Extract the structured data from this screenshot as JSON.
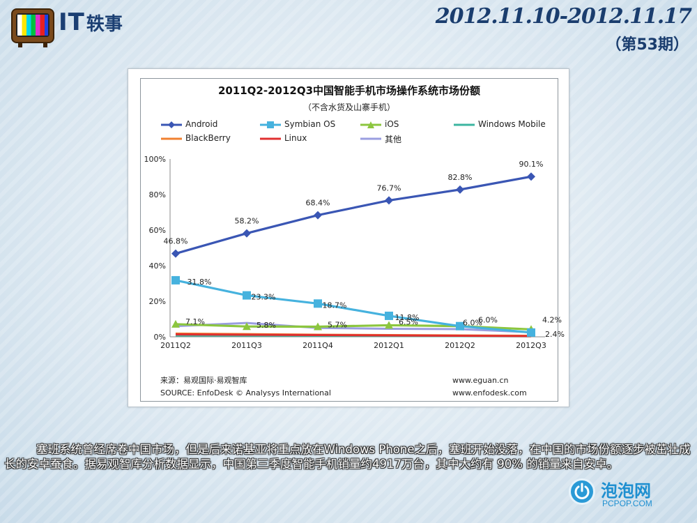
{
  "header": {
    "brand_it": "IT",
    "brand_cn": "轶事",
    "date_range": "2012.11.10-2012.11.17",
    "issue": "（第53期）"
  },
  "chart_data": {
    "type": "line",
    "title": "2011Q2-2012Q3中国智能手机市场操作系统市场份额",
    "subtitle": "（不含水货及山寨手机）",
    "categories": [
      "2011Q2",
      "2011Q3",
      "2011Q4",
      "2012Q1",
      "2012Q2",
      "2012Q3"
    ],
    "ylim": [
      0,
      100
    ],
    "yticks": [
      "0%",
      "20%",
      "40%",
      "60%",
      "80%",
      "100%"
    ],
    "legend_position": "top",
    "series": [
      {
        "name": "Android",
        "color": "#3a56b4",
        "marker": "diamond",
        "values": [
          46.8,
          58.2,
          68.4,
          76.7,
          82.8,
          90.1
        ],
        "labels": [
          "46.8%",
          "58.2%",
          "68.4%",
          "76.7%",
          "82.8%",
          "90.1%"
        ]
      },
      {
        "name": "Symbian OS",
        "color": "#46b2de",
        "marker": "square",
        "values": [
          31.8,
          23.3,
          18.7,
          11.8,
          6.0,
          2.4
        ],
        "labels": [
          "31.8%",
          "23.3%",
          "18.7%",
          "11.8%",
          "6.0%",
          "2.4%"
        ]
      },
      {
        "name": "iOS",
        "color": "#8cc63f",
        "marker": "triangle",
        "values": [
          7.1,
          5.8,
          5.7,
          6.5,
          6.0,
          4.2
        ],
        "labels": [
          "7.1%",
          "5.8%",
          "5.7%",
          "6.5%",
          "6.0%",
          "4.2%"
        ]
      },
      {
        "name": "Windows Mobile",
        "color": "#3cb5a0",
        "marker": "none",
        "values": [
          0.8,
          0.7,
          0.6,
          0.5,
          0.4,
          0.3
        ]
      },
      {
        "name": "BlackBerry",
        "color": "#f08030",
        "marker": "none",
        "values": [
          1.8,
          1.5,
          1.2,
          1.0,
          0.8,
          0.6
        ]
      },
      {
        "name": "Linux",
        "color": "#e03030",
        "marker": "none",
        "values": [
          1.4,
          1.2,
          1.0,
          0.8,
          0.6,
          0.4
        ]
      },
      {
        "name": "其他",
        "color": "#9a9ee0",
        "marker": "none",
        "values": [
          6.0,
          7.8,
          5.0,
          4.5,
          4.3,
          2.6
        ]
      }
    ],
    "source_cn": "来源：易观国际·易观智库",
    "source_en": "SOURCE: EnfoDesk © Analysys International",
    "url1": "www.eguan.cn",
    "url2": "www.enfodesk.com"
  },
  "caption": "塞班系统曾经席卷中国市场，但是后来诺基亚将重点放在Windows Phone之后，塞班开始没落，在中国的市场份额逐步被茁壮成长的安卓蚕食。据易观智库分析数据显示，中国第三季度智能手机销量约4917万台，其中大约有 90% 的销量来自安卓。",
  "site_logo": {
    "name": "泡泡网",
    "url": "PCPOP.COM"
  }
}
